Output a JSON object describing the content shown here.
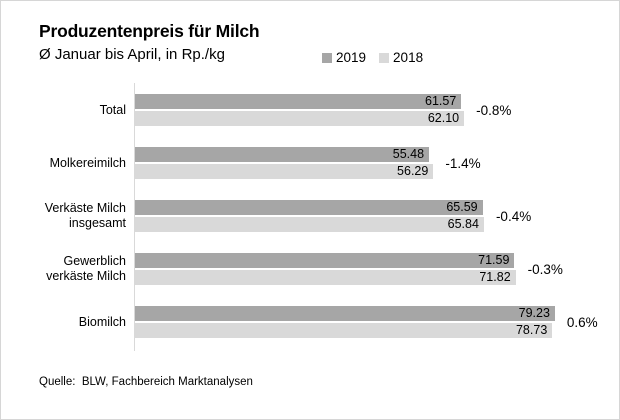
{
  "header": {
    "title": "Produzentenpreis für Milch",
    "subtitle": "Ø Januar bis April, in Rp./kg"
  },
  "legend": [
    {
      "label": "2019",
      "color": "#a6a6a6"
    },
    {
      "label": "2018",
      "color": "#d9d9d9"
    }
  ],
  "colors": {
    "bar_2019": "#a6a6a6",
    "bar_2018": "#d9d9d9",
    "axis": "#d9d9d9",
    "text": "#000000"
  },
  "source": "Quelle:  BLW, Fachbereich Marktanalysen",
  "chart_data": {
    "type": "bar",
    "orientation": "horizontal",
    "title": "Produzentenpreis für Milch",
    "subtitle": "Ø Januar bis April, in Rp./kg",
    "unit": "Rp./kg",
    "categories": [
      "Total",
      "Molkereimilch",
      "Verkäste Milch\ninsgesamt",
      "Gewerblich\nverkäste Milch",
      "Biomilch"
    ],
    "series": [
      {
        "name": "2019",
        "color": "#a6a6a6",
        "values": [
          61.57,
          55.48,
          65.59,
          71.59,
          79.23
        ]
      },
      {
        "name": "2018",
        "color": "#d9d9d9",
        "values": [
          62.1,
          56.29,
          65.84,
          71.82,
          78.73
        ]
      }
    ],
    "value_labels": {
      "s2019": [
        "61.57",
        "55.48",
        "65.59",
        "71.59",
        "79.23"
      ],
      "s2018": [
        "62.10",
        "56.29",
        "65.84",
        "71.82",
        "78.73"
      ]
    },
    "change_labels": [
      "-0.8%",
      "-1.4%",
      "-0.4%",
      "-0.3%",
      "0.6%"
    ],
    "xlim": [
      0,
      92
    ],
    "grid": false,
    "legend_position": "top"
  }
}
